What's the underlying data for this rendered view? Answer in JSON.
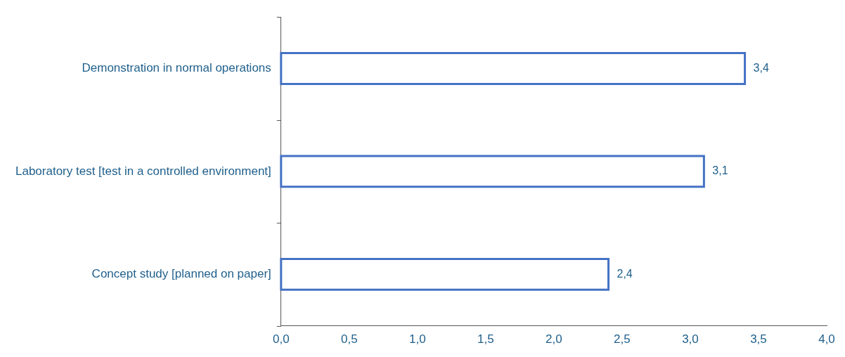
{
  "chart_data": {
    "type": "bar",
    "orientation": "horizontal",
    "categories": [
      "Demonstration in normal operations",
      "Laboratory test [test in a controlled environment]",
      "Concept study [planned on paper]"
    ],
    "values": [
      3.4,
      3.1,
      2.4
    ],
    "value_labels": [
      "3,4",
      "3,1",
      "2,4"
    ],
    "color": "#4472c4",
    "xlim": [
      0,
      4
    ],
    "xticks": [
      {
        "value": 0,
        "label": "0,0"
      },
      {
        "value": 0.5,
        "label": "0,5"
      },
      {
        "value": 1,
        "label": "1,0"
      },
      {
        "value": 1.5,
        "label": "1,5"
      },
      {
        "value": 2,
        "label": "2,0"
      },
      {
        "value": 2.5,
        "label": "2,5"
      },
      {
        "value": 3,
        "label": "3,0"
      },
      {
        "value": 3.5,
        "label": "3,5"
      },
      {
        "value": 4,
        "label": "4,0"
      }
    ],
    "grid": false,
    "legend": false
  }
}
